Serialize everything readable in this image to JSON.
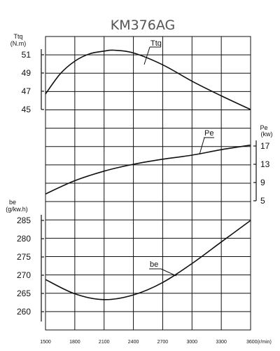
{
  "chart_data": {
    "type": "line",
    "title": "KM376AG",
    "x": {
      "unit": "(r/min)",
      "ticks": [
        1500,
        1800,
        2100,
        2400,
        2700,
        3000,
        3300,
        3600
      ],
      "range": [
        1500,
        3600
      ]
    },
    "axes": {
      "torque": {
        "label": "Ttq",
        "unit": "(N.m)",
        "ticks": [
          45,
          47,
          49,
          51
        ],
        "range": [
          45,
          52
        ],
        "side": "left"
      },
      "power": {
        "label": "Pe",
        "unit": "(kw)",
        "ticks": [
          5,
          9,
          13,
          17
        ],
        "range": [
          5,
          17
        ],
        "side": "right"
      },
      "bsfc": {
        "label": "be",
        "unit": "(g/kw.h)",
        "ticks": [
          260,
          265,
          270,
          275,
          280,
          285
        ],
        "range": [
          257,
          285
        ],
        "side": "left"
      }
    },
    "series": [
      {
        "name": "Ttq",
        "axis": "torque",
        "x": [
          1500,
          1650,
          1800,
          1950,
          2100,
          2200,
          2400,
          2700,
          3000,
          3300,
          3600
        ],
        "y": [
          46.7,
          48.9,
          50.3,
          51.1,
          51.4,
          51.5,
          51.2,
          49.9,
          48.1,
          46.5,
          45.0
        ]
      },
      {
        "name": "Pe",
        "axis": "power",
        "x": [
          1500,
          1800,
          2100,
          2400,
          2700,
          3000,
          3300,
          3600
        ],
        "y": [
          6.5,
          9.4,
          11.5,
          13.0,
          14.1,
          15.0,
          16.2,
          17.2
        ]
      },
      {
        "name": "be",
        "axis": "bsfc",
        "x": [
          1500,
          1800,
          2100,
          2400,
          2700,
          3000,
          3300,
          3600
        ],
        "y": [
          268.8,
          264.9,
          263.3,
          264.6,
          268.0,
          273.2,
          279.1,
          285.0
        ]
      }
    ],
    "grid": true
  }
}
